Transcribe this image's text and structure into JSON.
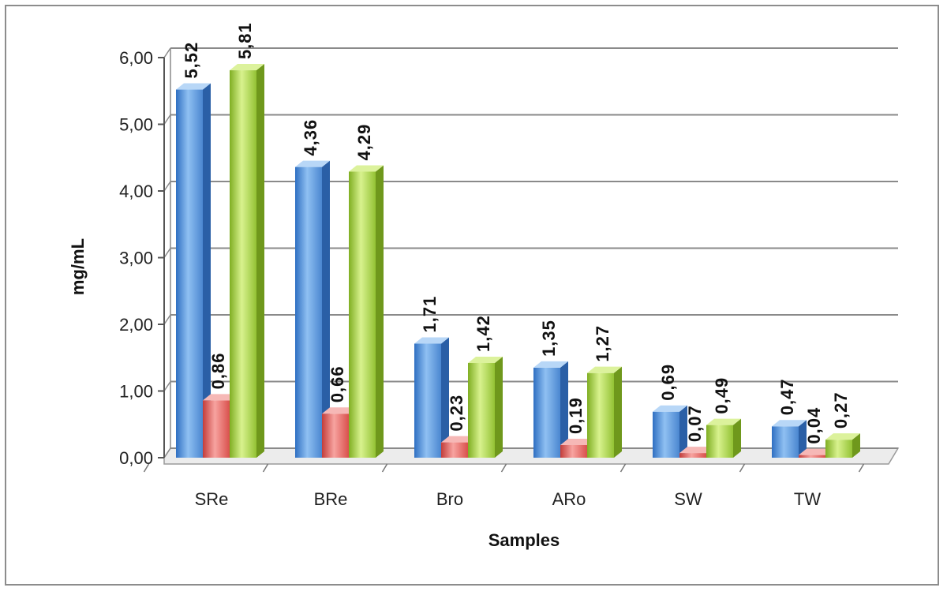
{
  "chart_data": {
    "type": "bar",
    "style": "3d-clustered-column",
    "categories": [
      "SRe",
      "BRe",
      "Bro",
      "ARo",
      "SW",
      "TW"
    ],
    "series": [
      {
        "values": [
          5.52,
          4.36,
          1.71,
          1.35,
          0.69,
          0.47
        ],
        "labels": [
          "5,52",
          "4,36",
          "1,71",
          "1,35",
          "0,69",
          "0,47"
        ],
        "color": "#5b9bd5"
      },
      {
        "values": [
          0.86,
          0.66,
          0.23,
          0.19,
          0.07,
          0.04
        ],
        "labels": [
          "0,86",
          "0,66",
          "0,23",
          "0,19",
          "0,07",
          "0,04"
        ],
        "color": "#e8615f"
      },
      {
        "values": [
          5.81,
          4.29,
          1.42,
          1.27,
          0.49,
          0.27
        ],
        "labels": [
          "5,81",
          "4,29",
          "1,42",
          "1,27",
          "0,49",
          "0,27"
        ],
        "color": "#a6d44a"
      }
    ],
    "yticks": [
      0,
      1,
      2,
      3,
      4,
      5,
      6
    ],
    "ytick_labels": [
      "0,00",
      "1,00",
      "2,00",
      "3,00",
      "4,00",
      "5,00",
      "6,00"
    ],
    "ylim": [
      0,
      6
    ],
    "xlabel": "Samples",
    "ylabel": "mg/mL",
    "grid": true,
    "legend": "none"
  }
}
